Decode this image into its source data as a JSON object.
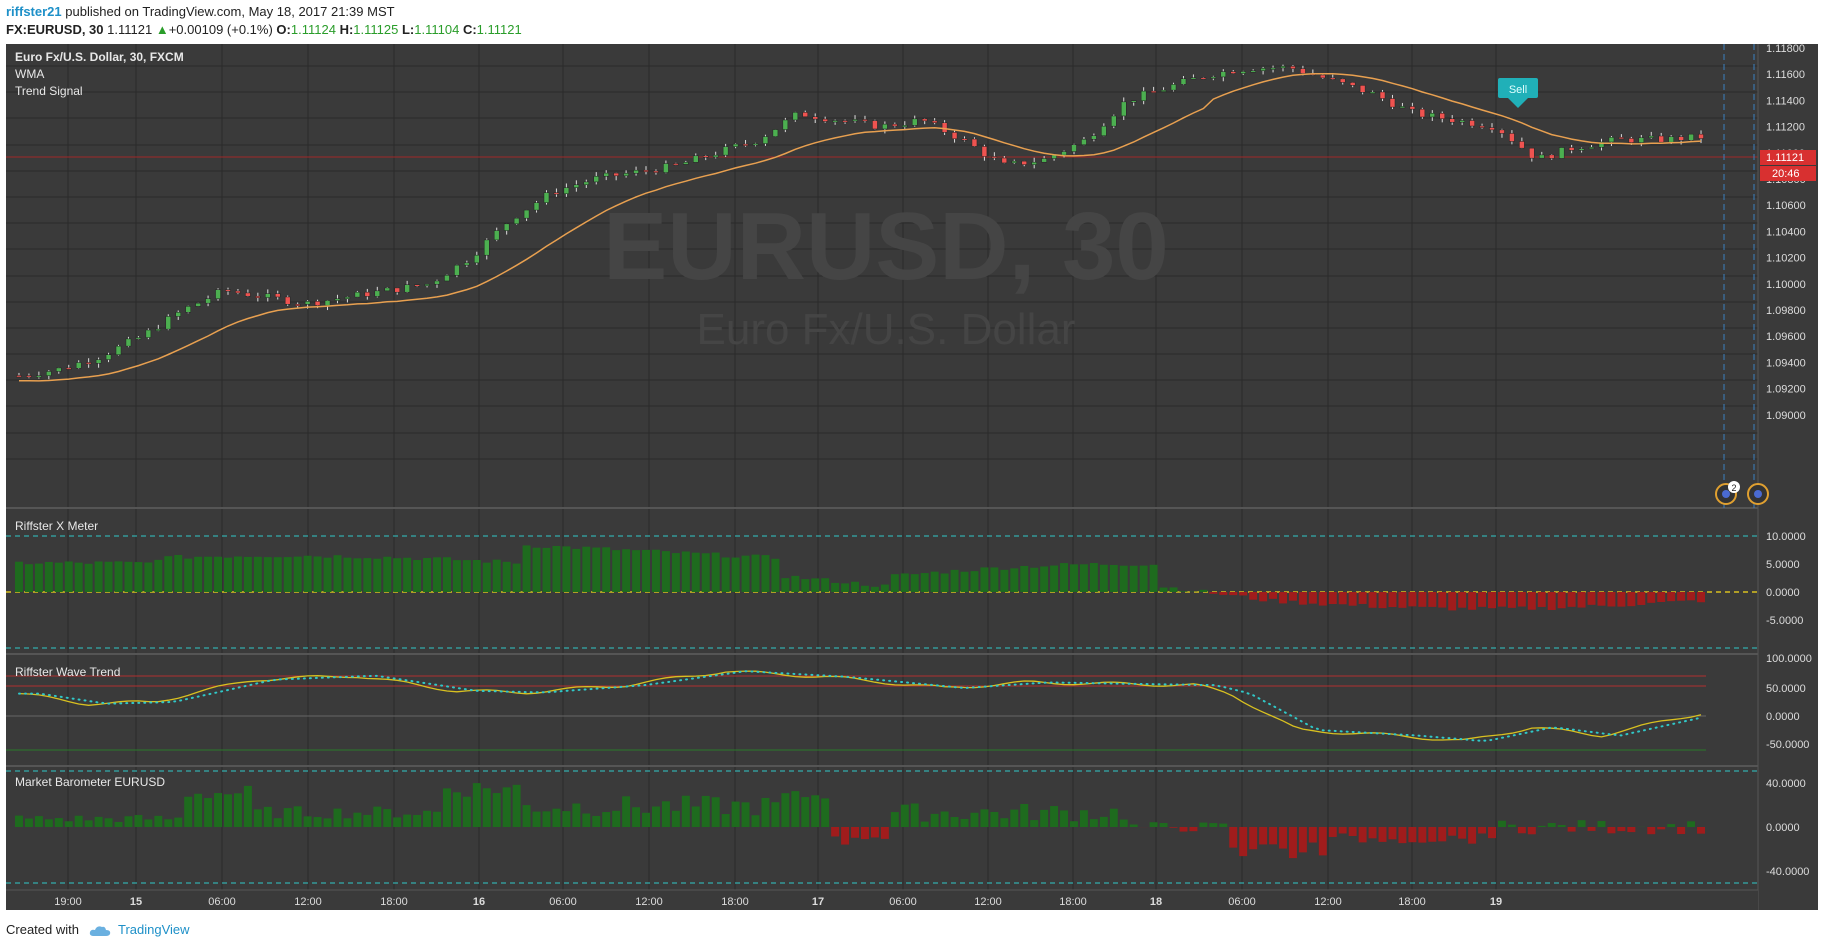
{
  "header": {
    "publisher": "riffster21",
    "published_text": "published on TradingView.com, May 18, 2017 21:39 MST",
    "symbol": "FX:EURUSD, 30",
    "last": "1.11121",
    "change": "+0.00109 (+0.1%)",
    "o_label": "O:",
    "o": "1.11124",
    "h_label": "H:",
    "h": "1.11125",
    "l_label": "L:",
    "l": "1.11104",
    "c_label": "C:",
    "c": "1.11121"
  },
  "main_pane": {
    "title": "Euro Fx/U.S. Dollar, 30, FXCM",
    "study1": "WMA",
    "study2": "Trend Signal",
    "watermark_symbol": "EURUSD, 30",
    "watermark_name": "Euro Fx/U.S. Dollar",
    "sell_label": "Sell",
    "price_tag": "1.11121",
    "countdown": "20:46",
    "price_ticks": [
      "1.11800",
      "1.11600",
      "1.11400",
      "1.11200",
      "1.11000",
      "1.10800",
      "1.10600",
      "1.10400",
      "1.10200",
      "1.10000",
      "1.09800",
      "1.09600",
      "1.09400",
      "1.09200",
      "1.09000"
    ],
    "event_badge": "2"
  },
  "pane_xmeter": {
    "title": "Riffster X Meter",
    "ticks": [
      "10.0000",
      "5.0000",
      "0.0000",
      "-5.0000"
    ]
  },
  "pane_wave": {
    "title": "Riffster Wave Trend",
    "ticks": [
      "100.0000",
      "50.0000",
      "0.0000",
      "-50.0000"
    ]
  },
  "pane_baro": {
    "title": "Market Barometer EURUSD",
    "ticks": [
      "40.0000",
      "0.0000",
      "-40.0000"
    ]
  },
  "time_axis": [
    "19:00",
    "15",
    "06:00",
    "12:00",
    "18:00",
    "16",
    "06:00",
    "12:00",
    "18:00",
    "17",
    "06:00",
    "12:00",
    "18:00",
    "18",
    "06:00",
    "12:00",
    "18:00",
    "19"
  ],
  "footer": {
    "created_with": "Created with",
    "brand": "TradingView"
  },
  "colors": {
    "bg": "#3a3a3a",
    "up": "#4caf50",
    "down": "#ef5350",
    "wma": "#e8a050",
    "cyan": "#30c8c8",
    "yellow": "#d8c020",
    "gridline": "#2a2a2a"
  },
  "chart_data": {
    "type": "candlestick",
    "title": "Euro Fx/U.S. Dollar, 30, FXCM",
    "y_range": [
      1.0885,
      1.1185
    ],
    "close_approx": [
      1.093,
      1.0935,
      1.0945,
      1.096,
      1.098,
      1.0995,
      1.099,
      1.0985,
      1.099,
      1.0995,
      1.1,
      1.102,
      1.105,
      1.107,
      1.108,
      1.1085,
      1.109,
      1.11,
      1.111,
      1.113,
      1.1125,
      1.112,
      1.1125,
      1.111,
      1.109,
      1.1095,
      1.111,
      1.114,
      1.115,
      1.116,
      1.1165,
      1.1165,
      1.1155,
      1.1145,
      1.113,
      1.1125,
      1.112,
      1.1095,
      1.1105,
      1.111,
      1.111,
      1.1112
    ],
    "last": 1.11121
  }
}
